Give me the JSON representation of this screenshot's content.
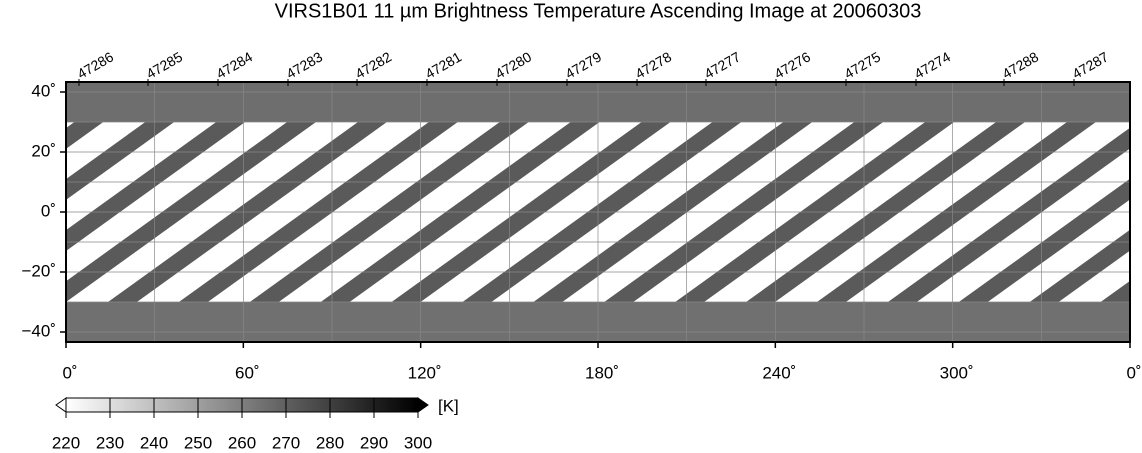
{
  "title": "VIRS1B01 11 µm Brightness Temperature Ascending Image at 20060303",
  "orbits": [
    "47286",
    "47285",
    "47284",
    "47283",
    "47282",
    "47281",
    "47280",
    "47279",
    "47278",
    "47277",
    "47276",
    "47275",
    "47274",
    "47288",
    "47287"
  ],
  "lat_ticks": [
    {
      "value": 40,
      "label": "40˚"
    },
    {
      "value": 20,
      "label": "20˚"
    },
    {
      "value": 0,
      "label": "0˚"
    },
    {
      "value": -20,
      "label": "−20˚"
    },
    {
      "value": -40,
      "label": "−40˚"
    }
  ],
  "lon_ticks": [
    {
      "value": 0,
      "label": "0˚"
    },
    {
      "value": 60,
      "label": "60˚"
    },
    {
      "value": 120,
      "label": "120˚"
    },
    {
      "value": 180,
      "label": "180˚"
    },
    {
      "value": 240,
      "label": "240˚"
    },
    {
      "value": 300,
      "label": "300˚"
    },
    {
      "value": 360,
      "label": "0˚"
    }
  ],
  "colorbar": {
    "unit": "[K]",
    "ticks": [
      220,
      230,
      240,
      250,
      260,
      270,
      280,
      290,
      300
    ],
    "range": [
      220,
      300
    ]
  }
}
